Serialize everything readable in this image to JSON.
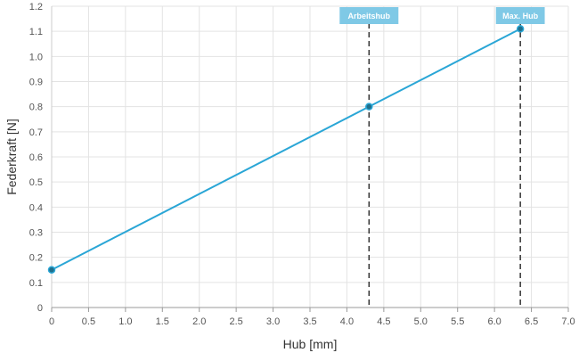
{
  "chart_data": {
    "type": "line",
    "xlabel": "Hub [mm]",
    "ylabel": "Federkraft [N]",
    "xlim": [
      0,
      7.0
    ],
    "ylim": [
      0,
      1.2
    ],
    "x_ticks": [
      "0",
      "0.5",
      "1.0",
      "1.5",
      "2.0",
      "2.5",
      "3.0",
      "3.5",
      "4.0",
      "4.5",
      "5.0",
      "5.5",
      "6.0",
      "6.5",
      "7.0"
    ],
    "y_ticks": [
      "0",
      "0.1",
      "0.2",
      "0.3",
      "0.4",
      "0.5",
      "0.6",
      "0.7",
      "0.8",
      "0.9",
      "1.0",
      "1.1",
      "1.2"
    ],
    "grid": true,
    "series": [
      {
        "color": "#2aa6d6",
        "points": [
          {
            "x": 0,
            "y": 0.15
          },
          {
            "x": 4.3,
            "y": 0.8
          },
          {
            "x": 6.35,
            "y": 1.11
          }
        ]
      }
    ],
    "markers": [
      {
        "label": "Arbeitshub",
        "x": 4.3
      },
      {
        "label": "Max. Hub",
        "x": 6.35
      }
    ],
    "colors": {
      "line": "#2aa6d6",
      "point_fill": "#1f6f8b",
      "marker_box": "#7fc9e6",
      "grid": "#e3e3e3",
      "dashed": "#333333"
    }
  }
}
